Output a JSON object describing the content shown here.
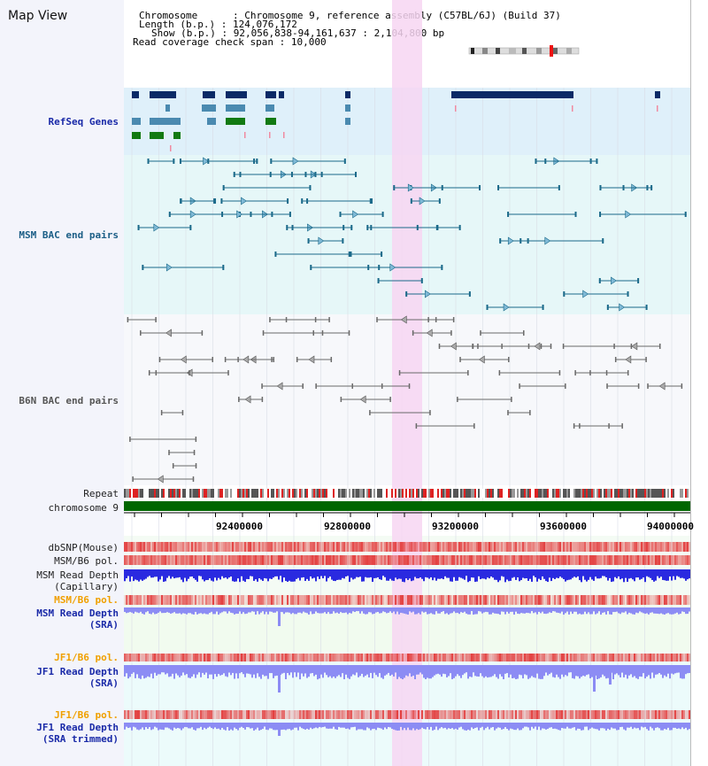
{
  "header": {
    "title": "Map View",
    "chromosome_label": "Chromosome",
    "chromosome_value": "Chromosome 9, reference assembly (C57BL/6J) (Build 37)",
    "length_label": "Length (b.p.)",
    "length_value": "124,076,172",
    "show_label": "Show (b.p.)",
    "show_value": "92,056,838-94,161,637 : 2,104,800 bp",
    "coverage_label": "Read coverage check span",
    "coverage_value": "10,000"
  },
  "tracks": {
    "refseq": "RefSeq Genes",
    "msm_bac": "MSM BAC end pairs",
    "b6n_bac": "B6N BAC end pairs",
    "repeat": "Repeat",
    "chromosome": "chromosome 9",
    "dbsnp": "dbSNP(Mouse)",
    "msm_b6_pol_1": "MSM/B6 pol.",
    "msm_read_depth_cap_1": "MSM Read Depth",
    "msm_read_depth_cap_2": "(Capillary)",
    "msm_b6_pol_2": "MSM/B6 pol.",
    "msm_read_depth_sra_1": "MSM Read Depth",
    "msm_read_depth_sra_2": "(SRA)",
    "jf1_b6_pol_1": "JF1/B6 pol.",
    "jf1_read_depth_1": "JF1 Read Depth",
    "jf1_read_depth_2": "(SRA)",
    "jf1_b6_pol_2": "JF1/B6 pol.",
    "jf1_trim_1": "JF1 Read Depth",
    "jf1_trim_2": "(SRA trimmed)"
  },
  "axis": {
    "ticks": [
      "92400000",
      "92800000",
      "93200000",
      "93600000",
      "94000000"
    ]
  },
  "colors": {
    "refseq_bg": "#dff0fa",
    "bac_bg": "#e6f7f8",
    "highlight": "#f7d6f2",
    "chrom_green": "#006600",
    "navy": "#0a2a66",
    "steel": "#4a8ab0",
    "teal": "#1b6a8a",
    "gray": "#6a6a6a",
    "blue_depth": "#2a2ae0",
    "light_depth": "#8c8cf4",
    "pol_red": "#e34040"
  }
}
